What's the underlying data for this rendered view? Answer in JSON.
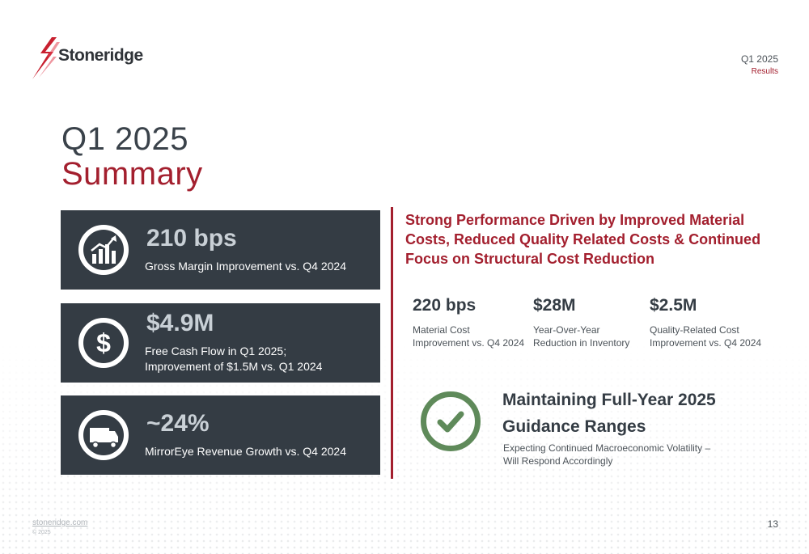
{
  "header": {
    "logo_text": "Stoneridge",
    "corner_line1": "Q1 2025",
    "corner_line2": "Results"
  },
  "title": {
    "line1": "Q1 2025",
    "line2": "Summary"
  },
  "cards": [
    {
      "value": "210 bps",
      "desc_line1": "Gross Margin Improvement vs. Q4 2024",
      "desc_line2": "",
      "icon": "growth-chart-icon"
    },
    {
      "value": "$4.9M",
      "desc_line1": "Free Cash Flow in Q1 2025;",
      "desc_line2": "Improvement of $1.5M vs. Q1 2024",
      "icon": "dollar-icon"
    },
    {
      "value": "~24%",
      "desc_line1": "MirrorEye Revenue Growth vs. Q4 2024",
      "desc_line2": "",
      "icon": "truck-icon"
    }
  ],
  "headline": "Strong Performance Driven by Improved Material Costs, Reduced Quality Related Costs & Continued Focus on Structural Cost Reduction",
  "metrics": [
    {
      "value": "220 bps",
      "desc_line1": "Material Cost",
      "desc_line2": "Improvement vs. Q4 2024"
    },
    {
      "value": "$28M",
      "desc_line1": "Year-Over-Year",
      "desc_line2": "Reduction in Inventory"
    },
    {
      "value": "$2.5M",
      "desc_line1": "Quality-Related Cost",
      "desc_line2": "Improvement vs. Q4 2024"
    }
  ],
  "guidance": {
    "title_line1": "Maintaining Full-Year 2025",
    "title_line2": "Guidance Ranges",
    "sub_line1": "Expecting Continued Macroeconomic Volatility –",
    "sub_line2": "Will Respond Accordingly",
    "icon": "checkmark-icon"
  },
  "footer": {
    "link": "stoneridge.com",
    "copyright": "© 2025",
    "page_number": "13"
  },
  "colors": {
    "brand_red": "#a31f2e",
    "card_bg": "#343c44",
    "check_green": "#5f8a5a"
  }
}
